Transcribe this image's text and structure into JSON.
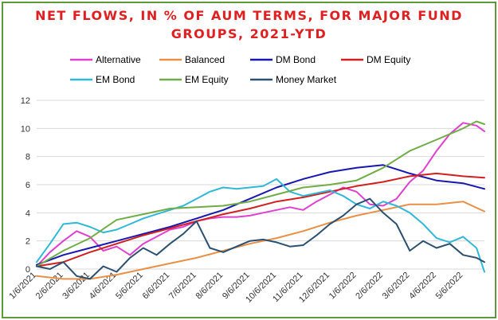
{
  "chart_data": {
    "type": "line",
    "title_lines": [
      "NET FLOWS, IN % OF AUM TERMS, FOR MAJOR FUND",
      "GROUPS, 2021-YTD"
    ],
    "x_tick_labels": [
      "1/6/2021",
      "2/6/2021",
      "3/6/2021",
      "4/6/2021",
      "5/6/2021",
      "6/6/2021",
      "7/6/2021",
      "8/6/2021",
      "9/6/2021",
      "10/6/2021",
      "11/6/2021",
      "12/6/2021",
      "1/6/2022",
      "2/6/2022",
      "3/6/2022",
      "4/6/2022",
      "5/6/2022"
    ],
    "y_tick_labels": [
      "0",
      "2",
      "4",
      "6",
      "8",
      "10",
      "12"
    ],
    "ylim": [
      0,
      12
    ],
    "x_range_months": [
      0,
      16.8
    ],
    "legend_position": "top",
    "grid": "horizontal",
    "series": [
      {
        "name": "Alternative",
        "color": "#e040d0",
        "x": [
          0,
          0.5,
          1,
          1.5,
          2,
          2.5,
          3,
          3.5,
          4,
          4.5,
          5,
          5.5,
          6,
          6.5,
          7,
          7.5,
          8,
          8.5,
          9,
          9.5,
          10,
          10.5,
          11,
          11.5,
          12,
          12.5,
          13,
          13.5,
          14,
          14.5,
          15,
          15.5,
          16,
          16.5,
          16.8
        ],
        "y": [
          0.2,
          1.2,
          2.0,
          2.7,
          2.3,
          1.3,
          1.6,
          1.0,
          1.8,
          2.3,
          2.8,
          3.0,
          3.4,
          3.6,
          3.7,
          3.7,
          3.8,
          4.0,
          4.2,
          4.4,
          4.2,
          4.8,
          5.3,
          5.8,
          5.5,
          4.6,
          4.5,
          5.0,
          6.2,
          7.0,
          8.4,
          9.6,
          10.4,
          10.2,
          9.8
        ]
      },
      {
        "name": "Balanced",
        "color": "#e89048",
        "x": [
          0,
          1,
          2,
          3,
          4,
          5,
          6,
          7,
          8,
          9,
          10,
          11,
          12,
          13,
          14,
          15,
          16,
          16.8
        ],
        "y": [
          -0.5,
          -0.7,
          -0.7,
          -0.4,
          0.0,
          0.4,
          0.8,
          1.3,
          1.8,
          2.2,
          2.7,
          3.3,
          3.8,
          4.2,
          4.6,
          4.6,
          4.8,
          4.1
        ]
      },
      {
        "name": "DM Bond",
        "color": "#1818b0",
        "x": [
          0,
          1,
          2,
          3,
          4,
          5,
          6,
          7,
          8,
          9,
          10,
          11,
          12,
          13,
          14,
          15,
          16,
          16.8
        ],
        "y": [
          0.3,
          1.0,
          1.5,
          2.0,
          2.5,
          3.0,
          3.6,
          4.2,
          5.0,
          5.8,
          6.4,
          6.9,
          7.2,
          7.4,
          6.8,
          6.3,
          6.1,
          5.7
        ]
      },
      {
        "name": "DM Equity",
        "color": "#d02020",
        "x": [
          0,
          1,
          2,
          3,
          4,
          5,
          6,
          7,
          8,
          9,
          10,
          11,
          12,
          13,
          14,
          15,
          16,
          16.8
        ],
        "y": [
          0.2,
          0.5,
          1.2,
          1.8,
          2.4,
          2.9,
          3.4,
          3.9,
          4.3,
          4.8,
          5.1,
          5.5,
          5.9,
          6.2,
          6.6,
          6.8,
          6.6,
          6.5
        ]
      },
      {
        "name": "EM Bond",
        "color": "#30b8d8",
        "x": [
          0,
          0.5,
          1,
          1.5,
          2,
          2.5,
          3,
          3.5,
          4,
          4.5,
          5,
          5.5,
          6,
          6.5,
          7,
          7.5,
          8,
          8.5,
          9,
          9.5,
          10,
          10.5,
          11,
          11.5,
          12,
          12.5,
          13,
          13.5,
          14,
          14.5,
          15,
          15.5,
          16,
          16.5,
          16.8
        ],
        "y": [
          0.5,
          1.8,
          3.2,
          3.3,
          3.0,
          2.6,
          2.8,
          3.2,
          3.6,
          3.9,
          4.2,
          4.5,
          5.0,
          5.5,
          5.8,
          5.7,
          5.8,
          5.9,
          6.4,
          5.5,
          5.2,
          5.4,
          5.6,
          5.2,
          4.6,
          4.3,
          4.8,
          4.5,
          4.0,
          3.2,
          2.2,
          1.9,
          2.3,
          1.5,
          -0.2
        ]
      },
      {
        "name": "EM Equity",
        "color": "#70ad47",
        "x": [
          0,
          1,
          2,
          3,
          4,
          5,
          6,
          7,
          8,
          9,
          10,
          11,
          12,
          13,
          14,
          15,
          16,
          16.5,
          16.8
        ],
        "y": [
          0.2,
          1.3,
          2.2,
          3.5,
          3.9,
          4.3,
          4.4,
          4.5,
          4.8,
          5.3,
          5.8,
          6.0,
          6.3,
          7.2,
          8.4,
          9.2,
          10.0,
          10.5,
          10.3
        ]
      },
      {
        "name": "Money Market",
        "color": "#2c5070",
        "x": [
          0,
          0.5,
          1,
          1.5,
          2,
          2.5,
          3,
          3.5,
          4,
          4.5,
          5,
          5.5,
          6,
          6.5,
          7,
          7.5,
          8,
          8.5,
          9,
          9.5,
          10,
          10.5,
          11,
          11.5,
          12,
          12.5,
          13,
          13.5,
          14,
          14.5,
          15,
          15.5,
          16,
          16.5,
          16.8
        ],
        "y": [
          0.2,
          0.0,
          0.5,
          -0.5,
          -0.7,
          0.2,
          -0.2,
          0.8,
          1.5,
          1.0,
          1.8,
          2.5,
          3.4,
          1.5,
          1.2,
          1.6,
          2.0,
          2.1,
          1.9,
          1.6,
          1.7,
          2.4,
          3.2,
          3.8,
          4.6,
          5.0,
          4.0,
          3.2,
          1.3,
          2.0,
          1.5,
          1.8,
          1.0,
          0.8,
          0.5
        ]
      }
    ]
  }
}
